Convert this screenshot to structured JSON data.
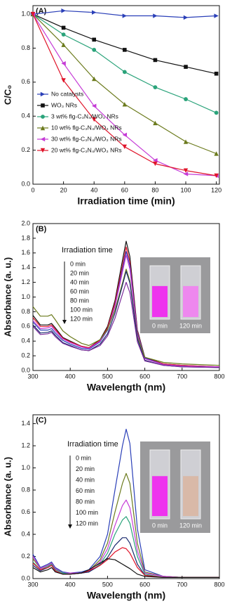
{
  "chart_data": [
    {
      "type": "line",
      "title": "(A)",
      "x_label": "Irradiation time (min)",
      "y_label": "C/C₀",
      "x": [
        0,
        20,
        40,
        60,
        80,
        100,
        120
      ],
      "xlim": [
        0,
        122
      ],
      "xticks": [
        0,
        20,
        40,
        60,
        80,
        100,
        120
      ],
      "ylim": [
        0,
        1.05
      ],
      "yticks": [
        {
          "value": 0,
          "label": "0.0"
        },
        {
          "value": 0.2,
          "label": "0.2"
        },
        {
          "value": 0.4,
          "label": "0.4"
        },
        {
          "value": 0.6,
          "label": "0.6"
        },
        {
          "value": 0.8,
          "label": "0.8"
        },
        {
          "value": 1,
          "label": "1.0"
        }
      ],
      "legend": "lower left",
      "markers": true,
      "series": [
        {
          "name": "No catalysts",
          "color": "#2a3fb8",
          "marker": "triangle-right",
          "values": [
            1.0,
            1.02,
            1.01,
            0.99,
            0.99,
            0.98,
            0.99
          ]
        },
        {
          "name": "WO₃ NRs",
          "color": "#111111",
          "marker": "square",
          "values": [
            1.0,
            0.92,
            0.85,
            0.79,
            0.73,
            0.69,
            0.65
          ]
        },
        {
          "name": "3 wt% flg-C₃N₄/WO₃ NRs",
          "color": "#2aa37a",
          "marker": "circle",
          "values": [
            1.0,
            0.88,
            0.79,
            0.66,
            0.57,
            0.5,
            0.42
          ]
        },
        {
          "name": "10 wt% flg-C₃N₄/WO₃ NRs",
          "color": "#6b7a1c",
          "marker": "triangle-up",
          "values": [
            1.0,
            0.82,
            0.62,
            0.47,
            0.36,
            0.25,
            0.18
          ]
        },
        {
          "name": "30 wt% flg-C₃N₄/WO₃ NRs",
          "color": "#c53ad6",
          "marker": "triangle-left",
          "values": [
            1.0,
            0.71,
            0.46,
            0.29,
            0.14,
            0.06,
            0.05
          ]
        },
        {
          "name": "20 wt% flg-C₃N₄/WO₃ NRs",
          "color": "#e0142a",
          "marker": "triangle-down",
          "values": [
            1.0,
            0.61,
            0.38,
            0.22,
            0.12,
            0.08,
            0.05
          ]
        }
      ]
    },
    {
      "type": "spectrum",
      "title": "(B)",
      "x_label": "Wavelength (nm)",
      "y_label": "Absorbance (a. u.)",
      "annotation": "Irradiation time",
      "inset_labels": [
        "0 min",
        "120 min"
      ],
      "inset_after": "#ee88ee",
      "x": [
        300,
        320,
        340,
        350,
        360,
        380,
        400,
        430,
        450,
        480,
        500,
        520,
        540,
        550,
        560,
        580,
        600,
        650,
        700,
        800
      ],
      "xlim": [
        300,
        800
      ],
      "xticks": [
        300,
        400,
        500,
        600,
        700,
        800
      ],
      "ylim": [
        0,
        2.0
      ],
      "yticks": [
        {
          "value": 0,
          "label": "0.0"
        },
        {
          "value": 0.2,
          "label": "0.2"
        },
        {
          "value": 0.4,
          "label": "0.4"
        },
        {
          "value": 0.6,
          "label": "0.6"
        },
        {
          "value": 0.8,
          "label": "0.8"
        },
        {
          "value": 1,
          "label": "1.0"
        },
        {
          "value": 1.2,
          "label": "1.2"
        },
        {
          "value": 1.4,
          "label": "1.4"
        },
        {
          "value": 1.6,
          "label": "1.6"
        },
        {
          "value": 1.8,
          "label": "1.8"
        },
        {
          "value": 2,
          "label": "2.0"
        }
      ],
      "series": [
        {
          "name": "0 min",
          "color": "#111111",
          "values": [
            0.75,
            0.62,
            0.62,
            0.64,
            0.58,
            0.45,
            0.4,
            0.33,
            0.31,
            0.42,
            0.6,
            0.95,
            1.5,
            1.76,
            1.55,
            0.55,
            0.18,
            0.09,
            0.07,
            0.05
          ]
        },
        {
          "name": "20 min",
          "color": "#e0142a",
          "values": [
            0.72,
            0.6,
            0.6,
            0.62,
            0.56,
            0.44,
            0.39,
            0.33,
            0.31,
            0.41,
            0.58,
            0.92,
            1.43,
            1.68,
            1.48,
            0.53,
            0.17,
            0.09,
            0.07,
            0.05
          ]
        },
        {
          "name": "40 min",
          "color": "#2a3fb8",
          "values": [
            0.66,
            0.55,
            0.55,
            0.57,
            0.51,
            0.41,
            0.36,
            0.3,
            0.29,
            0.39,
            0.55,
            0.88,
            1.38,
            1.62,
            1.43,
            0.51,
            0.17,
            0.08,
            0.06,
            0.04
          ]
        },
        {
          "name": "60 min",
          "color": "#c53ad6",
          "values": [
            0.68,
            0.57,
            0.58,
            0.6,
            0.54,
            0.43,
            0.38,
            0.32,
            0.3,
            0.4,
            0.56,
            0.87,
            1.34,
            1.57,
            1.38,
            0.49,
            0.16,
            0.08,
            0.06,
            0.05
          ]
        },
        {
          "name": "80 min",
          "color": "#6b7a1c",
          "values": [
            0.87,
            0.74,
            0.74,
            0.76,
            0.69,
            0.54,
            0.46,
            0.37,
            0.34,
            0.42,
            0.56,
            0.82,
            1.19,
            1.38,
            1.22,
            0.46,
            0.18,
            0.11,
            0.09,
            0.07
          ]
        },
        {
          "name": "100 min",
          "color": "#1a2a6e",
          "values": [
            0.62,
            0.51,
            0.52,
            0.54,
            0.48,
            0.38,
            0.34,
            0.28,
            0.27,
            0.36,
            0.5,
            0.78,
            1.16,
            1.35,
            1.19,
            0.43,
            0.14,
            0.07,
            0.05,
            0.04
          ]
        },
        {
          "name": "120 min",
          "color": "#7a2a9a",
          "values": [
            0.6,
            0.49,
            0.5,
            0.52,
            0.46,
            0.37,
            0.33,
            0.28,
            0.27,
            0.34,
            0.47,
            0.71,
            1.04,
            1.2,
            1.06,
            0.39,
            0.13,
            0.07,
            0.05,
            0.04
          ]
        }
      ]
    },
    {
      "type": "spectrum",
      "title": "(C)",
      "x_label": "Wavelength (nm)",
      "y_label": "Absorbance (a. u.)",
      "annotation": "Irradiation time",
      "inset_labels": [
        "0 min",
        "120 min"
      ],
      "inset_after": "#d9b9a8",
      "x": [
        300,
        320,
        340,
        350,
        360,
        380,
        400,
        430,
        450,
        480,
        500,
        520,
        540,
        550,
        560,
        580,
        600,
        650,
        700,
        800
      ],
      "xlim": [
        300,
        800
      ],
      "xticks": [
        300,
        400,
        500,
        600,
        700,
        800
      ],
      "ylim": [
        0,
        1.48
      ],
      "yticks": [
        {
          "value": 0,
          "label": "0.0"
        },
        {
          "value": 0.2,
          "label": "0.2"
        },
        {
          "value": 0.4,
          "label": "0.4"
        },
        {
          "value": 0.6,
          "label": "0.6"
        },
        {
          "value": 0.8,
          "label": "0.8"
        },
        {
          "value": 1,
          "label": "1.0"
        },
        {
          "value": 1.2,
          "label": "1.2"
        },
        {
          "value": 1.4,
          "label": "1.4"
        }
      ],
      "series": [
        {
          "name": "0 min",
          "color": "#2a3fb8",
          "values": [
            0.22,
            0.1,
            0.13,
            0.15,
            0.1,
            0.06,
            0.05,
            0.06,
            0.08,
            0.2,
            0.4,
            0.8,
            1.2,
            1.35,
            1.22,
            0.45,
            0.08,
            0.02,
            0.01,
            0.01
          ]
        },
        {
          "name": "20 min",
          "color": "#6b7a1c",
          "values": [
            0.18,
            0.09,
            0.12,
            0.14,
            0.09,
            0.05,
            0.05,
            0.05,
            0.07,
            0.17,
            0.32,
            0.6,
            0.86,
            0.95,
            0.86,
            0.32,
            0.06,
            0.02,
            0.01,
            0.01
          ]
        },
        {
          "name": "40 min",
          "color": "#c53ad6",
          "values": [
            0.2,
            0.09,
            0.12,
            0.14,
            0.09,
            0.05,
            0.05,
            0.05,
            0.07,
            0.15,
            0.27,
            0.48,
            0.66,
            0.71,
            0.64,
            0.25,
            0.05,
            0.02,
            0.01,
            0.01
          ]
        },
        {
          "name": "60 min",
          "color": "#2aa37a",
          "values": [
            0.15,
            0.08,
            0.11,
            0.13,
            0.08,
            0.05,
            0.04,
            0.05,
            0.06,
            0.13,
            0.23,
            0.4,
            0.53,
            0.56,
            0.5,
            0.2,
            0.04,
            0.01,
            0.01,
            0.01
          ]
        },
        {
          "name": "80 min",
          "color": "#1a2a6e",
          "values": [
            0.12,
            0.07,
            0.1,
            0.12,
            0.07,
            0.04,
            0.04,
            0.05,
            0.06,
            0.12,
            0.19,
            0.3,
            0.37,
            0.37,
            0.32,
            0.13,
            0.03,
            0.01,
            0.01,
            0.01
          ]
        },
        {
          "name": "100 min",
          "color": "#e0142a",
          "values": [
            0.14,
            0.08,
            0.1,
            0.12,
            0.07,
            0.04,
            0.04,
            0.05,
            0.07,
            0.12,
            0.17,
            0.24,
            0.28,
            0.27,
            0.23,
            0.1,
            0.03,
            0.01,
            0.01,
            0.01
          ]
        },
        {
          "name": "120 min",
          "color": "#111111",
          "values": [
            0.1,
            0.06,
            0.08,
            0.1,
            0.06,
            0.04,
            0.04,
            0.05,
            0.08,
            0.14,
            0.18,
            0.17,
            0.13,
            0.11,
            0.09,
            0.04,
            0.02,
            0.01,
            0.01,
            0.01
          ]
        }
      ]
    }
  ]
}
